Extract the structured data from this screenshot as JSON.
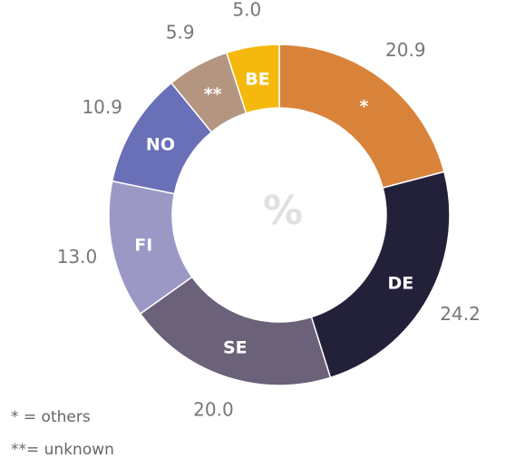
{
  "chart_data": {
    "type": "donut",
    "categories": [
      "*",
      "DE",
      "SE",
      "FI",
      "NO",
      "**",
      "BE"
    ],
    "values": [
      20.9,
      24.2,
      20.0,
      13.0,
      10.9,
      5.9,
      5.0
    ],
    "value_labels": [
      "20.9",
      "24.2",
      "20.0",
      "13.0",
      "10.9",
      "5.9",
      "5.0"
    ],
    "colors": [
      "#d9833a",
      "#23213a",
      "#6b6178",
      "#9c98c6",
      "#6a70b8",
      "#b49580",
      "#f5b90e"
    ],
    "center_label": "%",
    "notes": [
      "* = others",
      "**= unknown"
    ]
  }
}
